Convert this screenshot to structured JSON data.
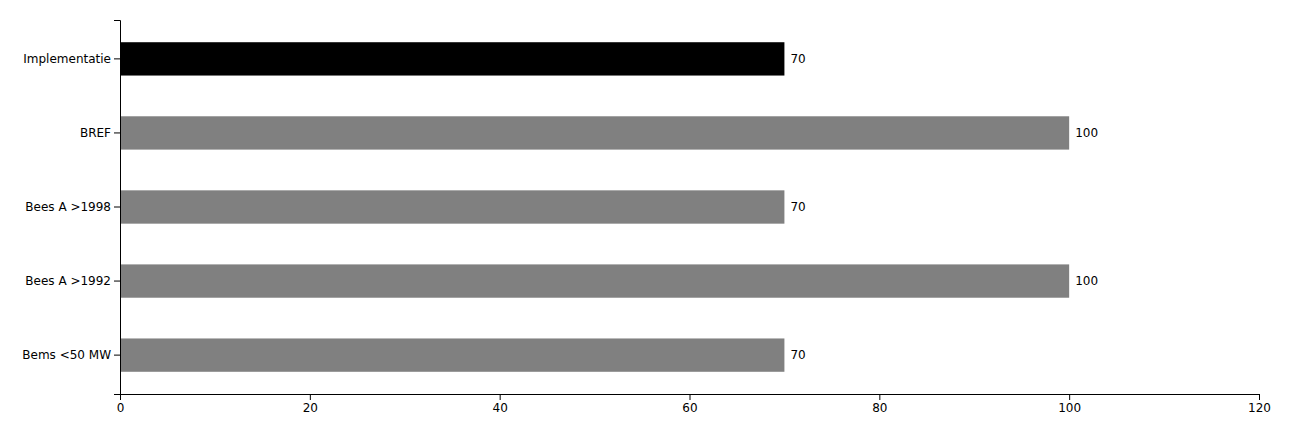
{
  "chart_data": {
    "type": "bar",
    "orientation": "horizontal",
    "categories": [
      "Bems <50 MW",
      "Bees A >1992",
      "Bees A >1998",
      "BREF",
      "Implementatie"
    ],
    "values": [
      70,
      100,
      70,
      100,
      70
    ],
    "colors": [
      "#808080",
      "#808080",
      "#808080",
      "#808080",
      "#000000"
    ],
    "xlim": [
      0,
      120
    ],
    "xticks": [
      0,
      20,
      40,
      60,
      80,
      100,
      120
    ],
    "grid": false,
    "data_labels": true
  }
}
